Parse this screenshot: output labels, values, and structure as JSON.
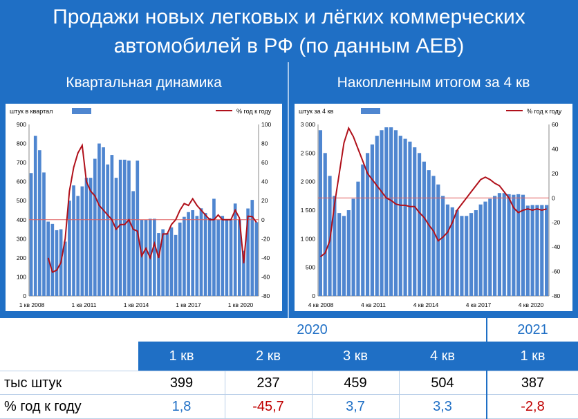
{
  "header": {
    "title_line1": "Продажи новых легковых и лёгких коммерческих",
    "title_line2": "автомобилей в РФ (по данным АЕВ)"
  },
  "panels": {
    "left_title": "Квартальная динамика",
    "right_title": "Накопленным итогом за 4 кв"
  },
  "colors": {
    "bar": "#4f86d0",
    "line": "#b0101a",
    "ref_line": "#e06060",
    "header_bg": "#1f6fc5",
    "positive": "#1f6fc5",
    "negative": "#c00000"
  },
  "chart_data": [
    {
      "type": "bar",
      "legend": {
        "bars": "штук в квартал",
        "line": "% год к году",
        "placement": "top"
      },
      "xlabels": [
        "1 кв 2008",
        "1 кв 2011",
        "1 кв 2014",
        "1 кв 2017",
        "1 кв 2020"
      ],
      "ylim_left": [
        0,
        900
      ],
      "yticks_left": [
        "0",
        "100",
        "200",
        "300",
        "400",
        "500",
        "600",
        "700",
        "800",
        "900"
      ],
      "ylim_right": [
        -80,
        100
      ],
      "yticks_right": [
        "-80",
        "-60",
        "-40",
        "-20",
        "0",
        "20",
        "40",
        "60",
        "80",
        "100"
      ],
      "bars": [
        645,
        840,
        765,
        648,
        390,
        378,
        345,
        350,
        285,
        500,
        580,
        525,
        575,
        620,
        620,
        720,
        800,
        780,
        690,
        740,
        620,
        715,
        715,
        710,
        550,
        710,
        400,
        400,
        405,
        405,
        330,
        350,
        330,
        360,
        320,
        385,
        415,
        440,
        450,
        420,
        460,
        435,
        410,
        510,
        400,
        420,
        400,
        398,
        485,
        399,
        237,
        459,
        504,
        387
      ],
      "line": [
        null,
        null,
        null,
        null,
        -40,
        -55,
        -53,
        -45,
        -20,
        30,
        55,
        70,
        78,
        40,
        30,
        25,
        15,
        10,
        5,
        0,
        -10,
        -5,
        -5,
        0,
        -10,
        -12,
        -38,
        -30,
        -40,
        -25,
        -40,
        -15,
        -15,
        -5,
        0,
        10,
        17,
        15,
        22,
        15,
        10,
        5,
        0,
        0,
        5,
        0,
        0,
        0,
        10,
        1.8,
        -45.7,
        3.7,
        3.3,
        -2.8
      ]
    },
    {
      "type": "bar",
      "legend": {
        "bars": "штук за 4 кв",
        "line": "% год к году",
        "placement": "top"
      },
      "xlabels": [
        "4 кв 2008",
        "4 кв 2011",
        "4 кв 2014",
        "4 кв 2017",
        "4 кв 2020"
      ],
      "ylim_left": [
        0,
        3000
      ],
      "yticks_left": [
        "0",
        "500",
        "1 000",
        "1 500",
        "2 000",
        "2 500",
        "3 000"
      ],
      "ylim_right": [
        -80,
        60
      ],
      "yticks_right": [
        "-80",
        "-60",
        "-40",
        "-20",
        "0",
        "20",
        "40",
        "60"
      ],
      "bars": [
        2900,
        2500,
        2100,
        1750,
        1450,
        1400,
        1500,
        1700,
        2000,
        2300,
        2500,
        2650,
        2800,
        2900,
        2950,
        2950,
        2900,
        2800,
        2750,
        2700,
        2600,
        2500,
        2350,
        2200,
        2100,
        1950,
        1750,
        1600,
        1550,
        1500,
        1400,
        1400,
        1450,
        1500,
        1600,
        1650,
        1700,
        1750,
        1800,
        1800,
        1780,
        1770,
        1780,
        1770,
        1580,
        1590,
        1590,
        1590,
        1590
      ],
      "line": [
        -48,
        -45,
        -35,
        -5,
        20,
        45,
        57,
        50,
        40,
        30,
        20,
        15,
        10,
        5,
        0,
        -2,
        -5,
        -6,
        -6,
        -7,
        -7,
        -12,
        -16,
        -22,
        -27,
        -35,
        -32,
        -28,
        -20,
        -10,
        -5,
        0,
        5,
        10,
        15,
        17,
        15,
        12,
        10,
        5,
        0,
        -8,
        -12,
        -10,
        -9,
        -10,
        -9,
        -10,
        -9
      ]
    }
  ],
  "table": {
    "years": [
      "2020",
      "2021"
    ],
    "quarters": [
      "1 кв",
      "2 кв",
      "3 кв",
      "4 кв",
      "1 кв"
    ],
    "row1_label": "тыс штук",
    "row1": [
      "399",
      "237",
      "459",
      "504",
      "387"
    ],
    "row2_label": "% год к году",
    "row2": [
      "1,8",
      "-45,7",
      "3,7",
      "3,3",
      "-2,8"
    ]
  }
}
